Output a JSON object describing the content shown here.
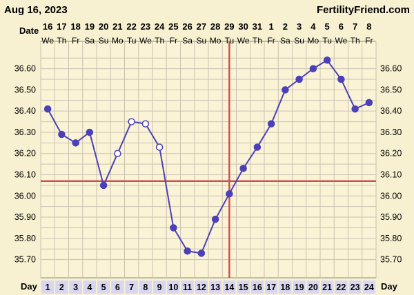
{
  "header": {
    "date": "Aug 16, 2023",
    "site": "FertilityFriend.com"
  },
  "labels": {
    "date_row": "Date",
    "day_row_left": "Day",
    "day_row_right": "Day"
  },
  "colors": {
    "background": "#f7f1d2",
    "plot_background": "#faf3d6",
    "grid": "#c9c2b0",
    "series": "#4a40b8",
    "coverline": "#c9534f",
    "ovulation_line": "#c9534f",
    "day_box": "#d8d6f0"
  },
  "chart_data": {
    "type": "line",
    "title": "",
    "xlabel": "Day",
    "ylabel": "",
    "ylim": [
      35.65,
      36.68
    ],
    "yticks": [
      "35.70",
      "35.80",
      "35.90",
      "36.00",
      "36.10",
      "36.20",
      "36.30",
      "36.40",
      "36.50",
      "36.60"
    ],
    "grid": true,
    "dates": [
      "16",
      "17",
      "18",
      "19",
      "20",
      "21",
      "22",
      "23",
      "24",
      "25",
      "26",
      "27",
      "28",
      "29",
      "30",
      "31",
      "1",
      "2",
      "3",
      "4",
      "5",
      "6",
      "7",
      "8"
    ],
    "weekdays": [
      "We",
      "Th",
      "Fr",
      "Sa",
      "Su",
      "Mo",
      "Tu",
      "We",
      "Th",
      "Fr",
      "Sa",
      "Su",
      "Mo",
      "Tu",
      "We",
      "Th",
      "Fr",
      "Sa",
      "Su",
      "Mo",
      "Tu",
      "We",
      "Th",
      "Fr"
    ],
    "days": [
      "1",
      "2",
      "3",
      "4",
      "5",
      "6",
      "7",
      "8",
      "9",
      "10",
      "11",
      "12",
      "13",
      "14",
      "15",
      "16",
      "17",
      "18",
      "19",
      "20",
      "21",
      "22",
      "23",
      "24"
    ],
    "series": [
      {
        "values": [
          36.41,
          36.29,
          36.25,
          36.3,
          36.05,
          36.2,
          36.35,
          36.34,
          36.23,
          35.85,
          35.74,
          35.73,
          35.89,
          36.01,
          36.13,
          36.23,
          36.34,
          36.5,
          36.55,
          36.6,
          36.64,
          36.55,
          36.41,
          36.44
        ],
        "open_markers": [
          6,
          7,
          8,
          9
        ]
      }
    ],
    "coverline": 36.07,
    "ovulation_day": 14
  }
}
